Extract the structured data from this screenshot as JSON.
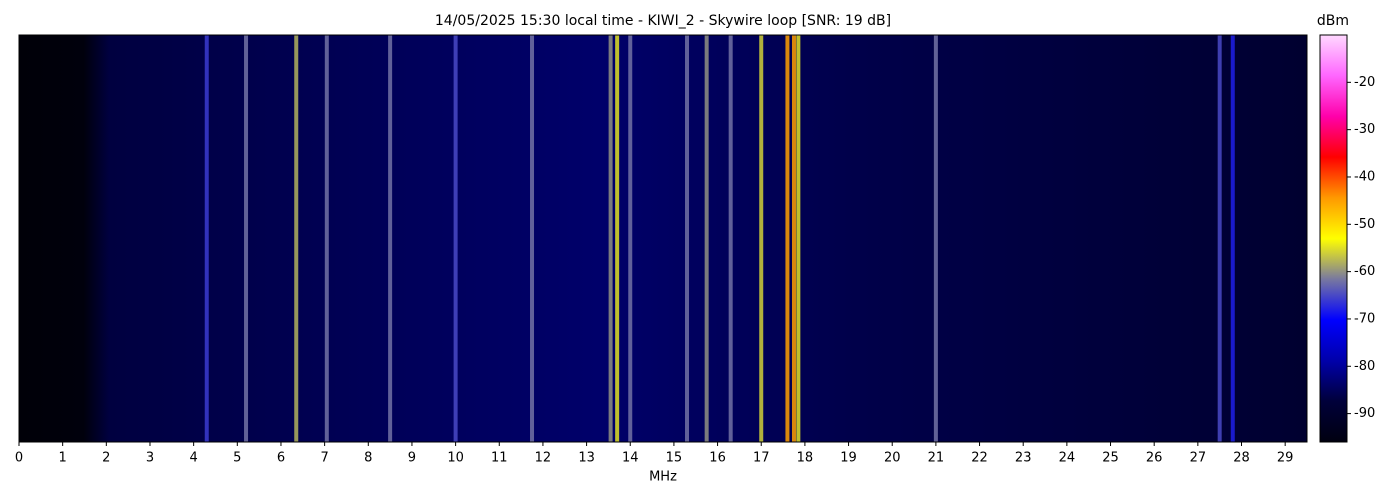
{
  "chart_data": {
    "type": "spectrogram",
    "title": "14/05/2025 15:30 local time - KIWI_2 - Skywire loop [SNR: 19 dB]",
    "xlabel": "MHz",
    "colorbar_label": "dBm",
    "xlim": [
      0,
      29.5
    ],
    "xticks": [
      0,
      1,
      2,
      3,
      4,
      5,
      6,
      7,
      8,
      9,
      10,
      11,
      12,
      13,
      14,
      15,
      16,
      17,
      18,
      19,
      20,
      21,
      22,
      23,
      24,
      25,
      26,
      27,
      28,
      29
    ],
    "clim": [
      -96,
      -10
    ],
    "cticks": [
      -20,
      -30,
      -40,
      -50,
      -60,
      -70,
      -80,
      -90
    ],
    "colormap": [
      "#000010",
      "#00003a",
      "#0000aa",
      "#0000ff",
      "#7878a0",
      "#ffff00",
      "#ff9900",
      "#ff0000",
      "#ff00aa",
      "#ff66ff",
      "#ffd8ff"
    ],
    "x": [
      4.3,
      5.2,
      6.35,
      7.05,
      8.5,
      10.0,
      11.75,
      13.55,
      13.7,
      14.0,
      15.3,
      15.75,
      16.3,
      17.0,
      17.6,
      17.75,
      17.85,
      21.0,
      27.5,
      27.8
    ],
    "values": [
      -66,
      -62,
      -58,
      -62,
      -62,
      -65,
      -62,
      -60,
      -55,
      -62,
      -62,
      -60,
      -62,
      -56,
      -45,
      -45,
      -55,
      -62,
      -65,
      -68
    ]
  }
}
